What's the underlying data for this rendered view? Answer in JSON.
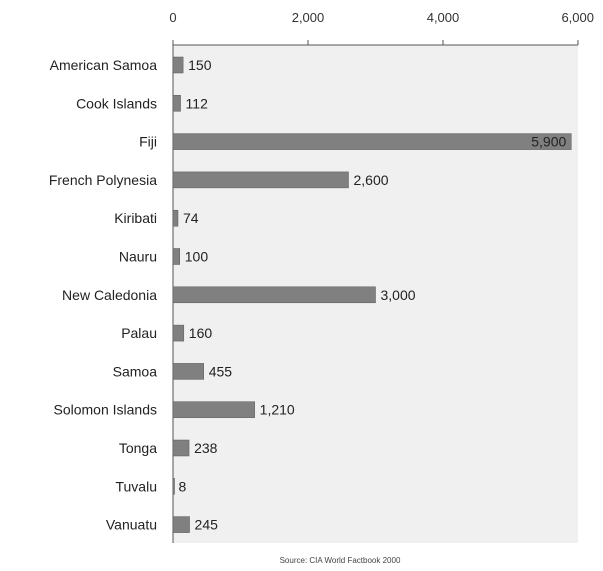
{
  "chart_data": {
    "type": "bar",
    "orientation": "horizontal",
    "categories": [
      "American Samoa",
      "Cook Islands",
      "Fiji",
      "French Polynesia",
      "Kiribati",
      "Nauru",
      "New Caledonia",
      "Palau",
      "Samoa",
      "Solomon Islands",
      "Tonga",
      "Tuvalu",
      "Vanuatu"
    ],
    "values": [
      150,
      112,
      5900,
      2600,
      74,
      100,
      3000,
      160,
      455,
      1210,
      238,
      8,
      245
    ],
    "value_labels": [
      "150",
      "112",
      "5,900",
      "2,600",
      "74",
      "100",
      "3,000",
      "160",
      "455",
      "1,210",
      "238",
      "8",
      "245"
    ],
    "xlim": [
      0,
      6000
    ],
    "x_ticks": [
      0,
      2000,
      4000,
      6000
    ],
    "x_tick_labels": [
      "0",
      "2,000",
      "4,000",
      "6,000"
    ],
    "x_axis_position": "top",
    "grid": false,
    "legend": "none",
    "source": "Source: CIA World Factbook 2000",
    "colors": {
      "bar": "#808080",
      "bar_edge": "#5a5a5a",
      "plot_background": "#f0f0f0",
      "axis": "#555555"
    }
  }
}
